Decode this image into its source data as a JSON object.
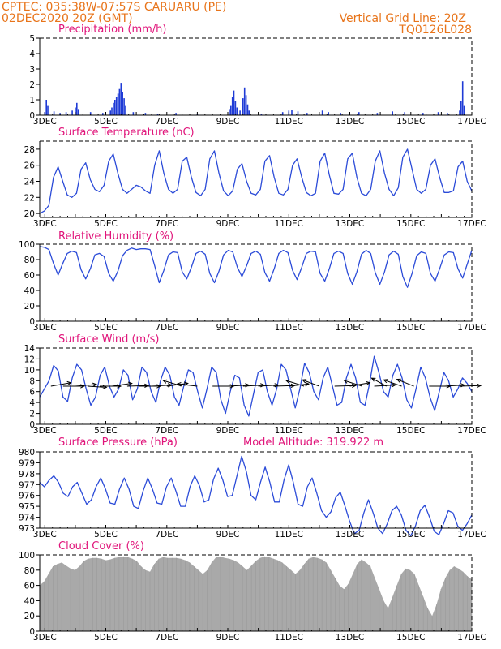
{
  "header": {
    "line1_left": "CPTEC:   035:38W-07:57S   CARUARU (PE)",
    "line2_left": "02DEC2020 20Z (GMT)",
    "line1_right": "Vertical Grid Line: 20Z",
    "line2_right": "TQ0126L028"
  },
  "model_altitude_label": "Model Altitude: 319.922 m",
  "colors": {
    "header": "#e8741a",
    "title": "#e0147a",
    "line": "#2b4bd8",
    "bar": "#1f3bd6",
    "cloud": "#a9a9a9"
  },
  "chart_data": [
    {
      "type": "bar",
      "title": "Precipitation (mm/h)",
      "ylim": [
        0,
        5
      ],
      "yticks": [
        "0",
        "1",
        "2",
        "3",
        "4",
        "5"
      ],
      "x_tick_labels": [
        "3DEC",
        "5DEC",
        "7DEC",
        "9DEC",
        "11DEC",
        "13DEC",
        "15DEC",
        "17DEC"
      ],
      "x_range_days": [
        2.8333,
        17.0
      ],
      "bars": [
        [
          3.0,
          0.2
        ],
        [
          3.05,
          1.0
        ],
        [
          3.1,
          0.6
        ],
        [
          3.3,
          0.25
        ],
        [
          3.5,
          0.15
        ],
        [
          3.7,
          0.2
        ],
        [
          3.9,
          0.3
        ],
        [
          4.0,
          0.5
        ],
        [
          4.05,
          0.8
        ],
        [
          4.1,
          0.4
        ],
        [
          4.5,
          0.2
        ],
        [
          4.9,
          0.15
        ],
        [
          5.15,
          0.3
        ],
        [
          5.2,
          0.5
        ],
        [
          5.25,
          0.8
        ],
        [
          5.3,
          1.0
        ],
        [
          5.35,
          1.2
        ],
        [
          5.4,
          1.4
        ],
        [
          5.45,
          1.7
        ],
        [
          5.5,
          2.1
        ],
        [
          5.55,
          1.5
        ],
        [
          5.6,
          1.1
        ],
        [
          5.65,
          0.6
        ],
        [
          5.9,
          0.2
        ],
        [
          6.3,
          0.15
        ],
        [
          6.7,
          0.1
        ],
        [
          7.3,
          0.15
        ],
        [
          8.0,
          0.1
        ],
        [
          9.05,
          0.4
        ],
        [
          9.1,
          0.6
        ],
        [
          9.15,
          1.2
        ],
        [
          9.2,
          1.6
        ],
        [
          9.25,
          0.9
        ],
        [
          9.3,
          0.5
        ],
        [
          9.4,
          0.3
        ],
        [
          9.5,
          1.1
        ],
        [
          9.55,
          1.8
        ],
        [
          9.6,
          1.3
        ],
        [
          9.65,
          0.7
        ],
        [
          9.7,
          0.3
        ],
        [
          10.1,
          0.1
        ],
        [
          10.8,
          0.2
        ],
        [
          11.0,
          0.3
        ],
        [
          11.1,
          0.35
        ],
        [
          11.3,
          0.25
        ],
        [
          11.6,
          0.15
        ],
        [
          12.1,
          0.3
        ],
        [
          12.3,
          0.2
        ],
        [
          12.7,
          0.15
        ],
        [
          13.3,
          0.2
        ],
        [
          13.9,
          0.15
        ],
        [
          14.4,
          0.25
        ],
        [
          14.8,
          0.2
        ],
        [
          15.4,
          0.15
        ],
        [
          15.9,
          0.2
        ],
        [
          16.2,
          0.15
        ],
        [
          16.6,
          0.3
        ],
        [
          16.65,
          0.9
        ],
        [
          16.7,
          2.2
        ],
        [
          16.75,
          0.6
        ]
      ]
    },
    {
      "type": "line",
      "title": "Surface Temperature (nC)",
      "ylim": [
        19.5,
        29
      ],
      "yticks": [
        "20",
        "22",
        "24",
        "26",
        "28"
      ],
      "x_tick_labels": [
        "3DEC",
        "5DEC",
        "7DEC",
        "9DEC",
        "11DEC",
        "13DEC",
        "15DEC",
        "17DEC"
      ],
      "x_range_days": [
        2.8333,
        17.0
      ],
      "series": [
        {
          "values": [
            20.0,
            20.3,
            21.0,
            24.5,
            25.8,
            24.0,
            22.3,
            22.0,
            22.5,
            25.5,
            26.3,
            24.2,
            23.0,
            22.7,
            23.5,
            26.5,
            27.4,
            25.0,
            23.0,
            22.5,
            23.0,
            23.5,
            23.3,
            22.8,
            22.5,
            26.0,
            27.8,
            25.0,
            23.0,
            22.5,
            23.0,
            26.5,
            27.0,
            24.5,
            22.6,
            22.2,
            23.0,
            26.8,
            27.8,
            25.0,
            22.8,
            22.2,
            22.8,
            25.5,
            26.2,
            24.0,
            22.5,
            22.3,
            23.0,
            26.5,
            27.2,
            24.5,
            22.5,
            22.3,
            23.0,
            26.0,
            26.8,
            24.5,
            22.6,
            22.2,
            22.5,
            26.5,
            27.5,
            24.8,
            22.5,
            22.4,
            23.0,
            26.8,
            27.5,
            24.5,
            22.5,
            22.2,
            23.0,
            26.5,
            27.8,
            25.0,
            23.0,
            22.2,
            23.2,
            27.0,
            28.0,
            25.5,
            23.0,
            22.5,
            23.0,
            26.0,
            26.8,
            24.5,
            22.6,
            22.6,
            22.8,
            25.8,
            26.5,
            24.0,
            22.8
          ]
        }
      ]
    },
    {
      "type": "line",
      "title": "Relative Humidity (%)",
      "ylim": [
        0,
        100
      ],
      "yticks": [
        "0",
        "20",
        "40",
        "60",
        "80",
        "100"
      ],
      "x_tick_labels": [
        "3DEC",
        "5DEC",
        "7DEC",
        "9DEC",
        "11DEC",
        "13DEC",
        "15DEC",
        "17DEC"
      ],
      "x_range_days": [
        2.8333,
        17.0
      ],
      "series": [
        {
          "values": [
            97,
            96,
            93,
            75,
            60,
            75,
            88,
            91,
            89,
            67,
            55,
            68,
            86,
            88,
            84,
            62,
            52,
            65,
            85,
            92,
            95,
            93,
            94,
            94,
            93,
            72,
            50,
            66,
            86,
            90,
            89,
            64,
            55,
            70,
            88,
            91,
            87,
            62,
            50,
            65,
            86,
            92,
            90,
            70,
            58,
            72,
            88,
            91,
            87,
            63,
            52,
            68,
            88,
            92,
            89,
            66,
            54,
            70,
            88,
            91,
            90,
            62,
            52,
            68,
            88,
            91,
            88,
            62,
            48,
            64,
            87,
            92,
            88,
            63,
            48,
            64,
            86,
            91,
            87,
            58,
            44,
            62,
            85,
            90,
            88,
            62,
            52,
            68,
            86,
            90,
            89,
            68,
            56,
            74,
            92
          ]
        }
      ]
    },
    {
      "type": "line",
      "title": "Surface Wind (m/s)",
      "ylim": [
        0,
        14
      ],
      "yticks": [
        "0",
        "2",
        "4",
        "6",
        "8",
        "10",
        "12",
        "14"
      ],
      "x_tick_labels": [
        "3DEC",
        "5DEC",
        "7DEC",
        "9DEC",
        "11DEC",
        "13DEC",
        "15DEC",
        "17DEC"
      ],
      "x_range_days": [
        2.8333,
        17.0
      ],
      "series": [
        {
          "values": [
            5.0,
            6.5,
            8.0,
            10.8,
            9.8,
            5.0,
            4.2,
            8.5,
            11.0,
            10.0,
            6.5,
            3.5,
            5.0,
            9.0,
            10.5,
            7.0,
            5.0,
            6.5,
            10.0,
            9.0,
            4.5,
            6.5,
            10.5,
            9.5,
            6.0,
            4.0,
            8.0,
            10.5,
            9.0,
            5.0,
            3.5,
            7.0,
            10.0,
            9.5,
            6.0,
            3.0,
            6.5,
            10.5,
            9.5,
            4.5,
            2.0,
            6.0,
            9.0,
            8.5,
            3.5,
            1.5,
            5.5,
            9.5,
            10.0,
            6.0,
            3.5,
            6.5,
            11.0,
            10.0,
            6.5,
            3.0,
            6.5,
            11.2,
            9.5,
            6.0,
            4.5,
            8.5,
            10.5,
            7.0,
            3.5,
            4.0,
            8.5,
            11.0,
            8.5,
            4.0,
            3.5,
            7.5,
            12.5,
            9.5,
            6.0,
            5.0,
            9.0,
            11.0,
            8.5,
            4.5,
            3.0,
            6.5,
            10.5,
            8.5,
            5.0,
            2.5,
            6.0,
            9.5,
            8.0,
            5.0,
            6.5,
            8.5,
            7.5,
            6.0
          ]
        }
      ],
      "vectors": [
        [
          3.2,
          0.95,
          0.3
        ],
        [
          3.6,
          1.0,
          0.0
        ],
        [
          4.0,
          1.0,
          0.15
        ],
        [
          4.4,
          0.9,
          -0.1
        ],
        [
          4.8,
          1.0,
          0.0
        ],
        [
          5.2,
          0.95,
          0.25
        ],
        [
          5.7,
          1.0,
          0.05
        ],
        [
          6.1,
          1.0,
          0.0
        ],
        [
          6.5,
          0.95,
          0.1
        ],
        [
          7.0,
          1.0,
          0.25
        ],
        [
          7.5,
          -0.9,
          0.5
        ],
        [
          8.0,
          -0.95,
          0.2
        ],
        [
          8.5,
          1.0,
          0.0
        ],
        [
          9.0,
          1.0,
          0.1
        ],
        [
          9.5,
          1.0,
          0.1
        ],
        [
          10.0,
          0.95,
          0.1
        ],
        [
          10.5,
          1.0,
          0.05
        ],
        [
          11.0,
          0.95,
          0.2
        ],
        [
          11.5,
          -0.85,
          0.5
        ],
        [
          12.0,
          -0.8,
          0.55
        ],
        [
          12.5,
          1.0,
          0.05
        ],
        [
          13.0,
          0.95,
          0.3
        ],
        [
          13.4,
          -0.85,
          0.5
        ],
        [
          13.8,
          1.0,
          0.1
        ],
        [
          14.2,
          -0.7,
          0.7
        ],
        [
          14.7,
          -0.85,
          0.55
        ],
        [
          15.1,
          -0.8,
          0.6
        ],
        [
          15.6,
          1.0,
          0.0
        ],
        [
          16.1,
          0.95,
          0.1
        ],
        [
          16.6,
          1.0,
          0.05
        ]
      ]
    },
    {
      "type": "line",
      "title": "Surface Pressure (hPa)",
      "ylim": [
        973,
        980
      ],
      "yticks": [
        "973",
        "974",
        "975",
        "976",
        "977",
        "978",
        "979",
        "980"
      ],
      "x_tick_labels": [
        "3DEC",
        "5DEC",
        "7DEC",
        "9DEC",
        "11DEC",
        "13DEC",
        "15DEC",
        "17DEC"
      ],
      "x_range_days": [
        2.8333,
        17.0
      ],
      "series": [
        {
          "values": [
            977.2,
            976.8,
            977.4,
            977.8,
            977.2,
            976.2,
            975.9,
            976.8,
            977.2,
            976.2,
            975.2,
            975.6,
            976.8,
            977.6,
            976.6,
            975.3,
            975.2,
            976.6,
            977.6,
            976.6,
            975.0,
            974.8,
            976.4,
            977.6,
            976.6,
            975.3,
            975.2,
            976.8,
            977.6,
            976.4,
            975.0,
            975.0,
            976.8,
            977.8,
            976.9,
            975.4,
            975.6,
            977.5,
            978.5,
            977.4,
            975.9,
            976.0,
            977.8,
            979.6,
            978.2,
            976.0,
            975.6,
            977.2,
            978.6,
            977.2,
            975.4,
            975.4,
            977.4,
            978.8,
            977.2,
            975.2,
            975.0,
            976.8,
            977.6,
            976.2,
            974.6,
            974.0,
            974.5,
            975.8,
            976.3,
            975.0,
            973.6,
            972.5,
            972.8,
            974.4,
            975.6,
            974.4,
            973.0,
            972.5,
            973.4,
            974.6,
            975.0,
            974.2,
            972.8,
            972.3,
            973.2,
            974.6,
            975.1,
            974.0,
            972.7,
            972.4,
            973.4,
            974.6,
            974.4,
            973.2,
            972.8,
            973.4,
            974.2
          ]
        }
      ]
    },
    {
      "type": "area",
      "title": "Cloud Cover (%)",
      "ylim": [
        0,
        100
      ],
      "yticks": [
        "0",
        "20",
        "40",
        "60",
        "80",
        "100"
      ],
      "x_tick_labels": [
        "3DEC",
        "5DEC",
        "7DEC",
        "9DEC",
        "11DEC",
        "13DEC",
        "15DEC",
        "17DEC"
      ],
      "x_range_days": [
        2.8333,
        17.0
      ],
      "series": [
        {
          "values": [
            60,
            65,
            75,
            85,
            88,
            90,
            86,
            82,
            80,
            85,
            92,
            95,
            96,
            96,
            95,
            93,
            94,
            96,
            97,
            98,
            97,
            95,
            92,
            85,
            80,
            78,
            88,
            95,
            97,
            96,
            96,
            96,
            95,
            93,
            90,
            85,
            80,
            75,
            80,
            90,
            97,
            98,
            96,
            95,
            93,
            90,
            85,
            80,
            86,
            92,
            96,
            98,
            97,
            95,
            93,
            90,
            85,
            80,
            75,
            80,
            88,
            95,
            97,
            96,
            94,
            90,
            80,
            70,
            60,
            55,
            62,
            75,
            88,
            94,
            90,
            85,
            70,
            55,
            40,
            30,
            45,
            60,
            75,
            82,
            80,
            75,
            60,
            45,
            30,
            20,
            35,
            55,
            70,
            80,
            85,
            82,
            78,
            72,
            68
          ]
        }
      ]
    }
  ]
}
